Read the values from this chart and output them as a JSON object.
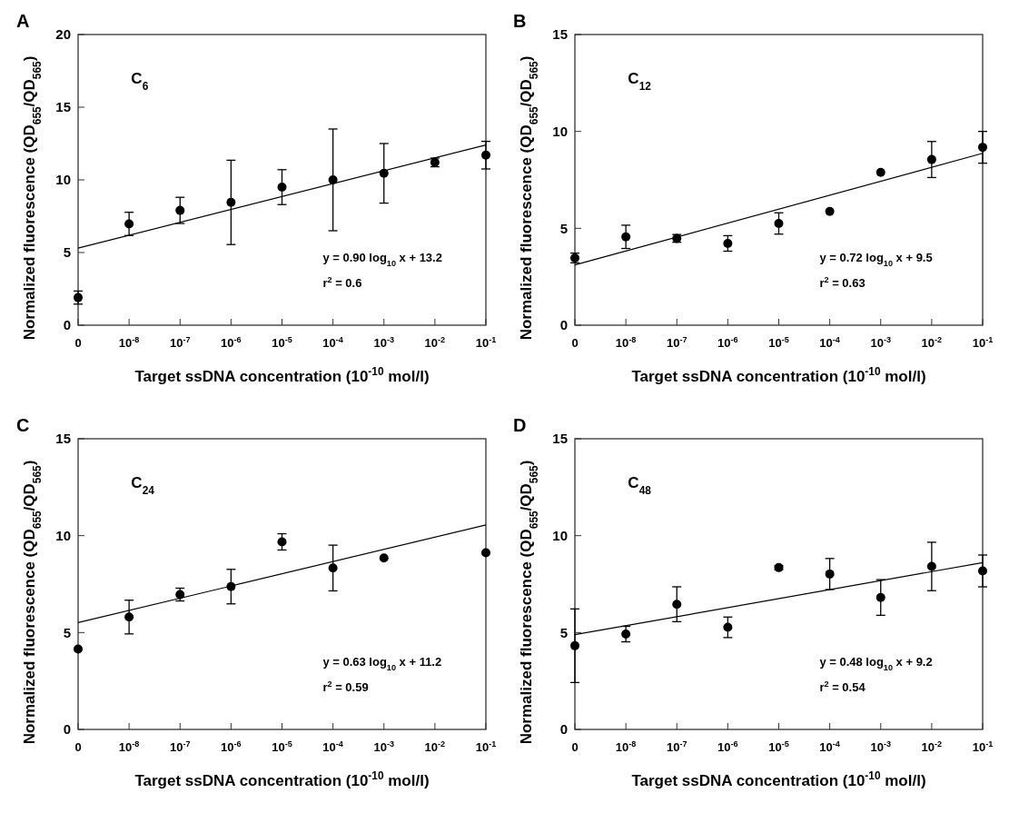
{
  "chart_data": [
    {
      "type": "scatter",
      "title": "A",
      "xlabel": "Target ssDNA concentration (10$^{-10}$ mol/l)",
      "ylabel": "Normalized fluorescence (QD$_{655}$/QD$_{565}$)",
      "categories": [
        "0",
        "10$^{-8}$",
        "10$^{-7}$",
        "10$^{-6}$",
        "10$^{-5}$",
        "10$^{-4}$",
        "10$^{-3}$",
        "10$^{-2}$",
        "10$^{-1}$"
      ],
      "ylim": [
        0,
        20
      ],
      "yticks": [
        0,
        5,
        10,
        15,
        20
      ],
      "annotations": [
        "C$_{6}$",
        "y = 0.90 log$_{10}$ x + 13.2",
        "r$^{2}$ = 0.6"
      ],
      "series": [
        {
          "marker": "circle",
          "color": "#000000",
          "values": [
            1.9,
            6.97,
            7.9,
            8.45,
            9.5,
            10.0,
            10.45,
            11.2,
            11.7
          ],
          "errors": [
            0.45,
            0.8,
            0.9,
            2.9,
            1.2,
            3.5,
            2.05,
            0.3,
            0.95
          ]
        },
        {
          "type": "line",
          "color": "#000000",
          "x": [
            "0",
            "10$^{-1}$"
          ],
          "values": [
            5.3,
            12.4
          ]
        }
      ]
    },
    {
      "type": "scatter",
      "title": "B",
      "xlabel": "Target ssDNA concentration (10$^{-10}$ mol/l)",
      "ylabel": "Normalized fluorescence (QD$_{655}$/QD$_{565}$)",
      "categories": [
        "0",
        "10$^{-8}$",
        "10$^{-7}$",
        "10$^{-6}$",
        "10$^{-5}$",
        "10$^{-4}$",
        "10$^{-3}$",
        "10$^{-2}$",
        "10$^{-1}$"
      ],
      "ylim": [
        0,
        15
      ],
      "yticks": [
        0,
        5,
        10,
        15
      ],
      "annotations": [
        "C$_{12}$",
        "y = 0.72 log$_{10}$ x + 9.5",
        "r$^{2}$ = 0.63"
      ],
      "series": [
        {
          "marker": "circle",
          "color": "#000000",
          "values": [
            3.47,
            4.56,
            4.48,
            4.22,
            5.25,
            5.87,
            7.89,
            8.55,
            9.18
          ],
          "errors": [
            0.25,
            0.6,
            0.2,
            0.4,
            0.55,
            null,
            null,
            0.93,
            0.82
          ]
        },
        {
          "type": "line",
          "color": "#000000",
          "x": [
            "0",
            "10$^{-1}$"
          ],
          "values": [
            3.11,
            8.87
          ]
        }
      ]
    },
    {
      "type": "scatter",
      "title": "C",
      "xlabel": "Target ssDNA concentration (10$^{-10}$ mol/l)",
      "ylabel": "Normalized fluorescence (QD$_{655}$/QD$_{565}$)",
      "categories": [
        "0",
        "10$^{-8}$",
        "10$^{-7}$",
        "10$^{-6}$",
        "10$^{-5}$",
        "10$^{-4}$",
        "10$^{-3}$",
        "10$^{-2}$",
        "10$^{-1}$"
      ],
      "ylim": [
        0,
        15
      ],
      "yticks": [
        0,
        5,
        10,
        15
      ],
      "annotations": [
        "C$_{24}$",
        "y = 0.63 log$_{10}$ x + 11.2",
        "r$^{2}$ = 0.59"
      ],
      "series": [
        {
          "marker": "circle",
          "color": "#000000",
          "values": [
            4.15,
            5.8,
            6.96,
            7.37,
            9.68,
            8.33,
            8.85,
            null,
            9.12
          ],
          "errors": [
            null,
            0.87,
            0.33,
            0.89,
            0.42,
            1.18,
            null,
            null,
            null
          ]
        },
        {
          "type": "line",
          "color": "#000000",
          "x": [
            "0",
            "10$^{-1}$"
          ],
          "values": [
            5.51,
            10.55
          ]
        }
      ]
    },
    {
      "type": "scatter",
      "title": "D",
      "xlabel": "Target ssDNA concentration (10$^{-10}$ mol/l)",
      "ylabel": "Normalized fluorescence (QD$_{655}$/QD$_{565}$)",
      "categories": [
        "0",
        "10$^{-8}$",
        "10$^{-7}$",
        "10$^{-6}$",
        "10$^{-5}$",
        "10$^{-4}$",
        "10$^{-3}$",
        "10$^{-2}$",
        "10$^{-1}$"
      ],
      "ylim": [
        0,
        15
      ],
      "yticks": [
        0,
        5,
        10,
        15
      ],
      "annotations": [
        "C$_{48}$",
        "y = 0.48 log$_{10}$ x + 9.2",
        "r$^{2}$ = 0.54"
      ],
      "series": [
        {
          "marker": "circle",
          "color": "#000000",
          "values": [
            4.32,
            4.92,
            6.46,
            5.27,
            8.35,
            8.02,
            6.81,
            8.41,
            8.18
          ],
          "errors": [
            1.9,
            0.4,
            0.9,
            0.53,
            0.1,
            0.8,
            0.92,
            1.25,
            0.82
          ]
        },
        {
          "type": "line",
          "color": "#000000",
          "x": [
            "0",
            "10$^{-1}$"
          ],
          "values": [
            4.89,
            8.61
          ]
        }
      ]
    }
  ]
}
